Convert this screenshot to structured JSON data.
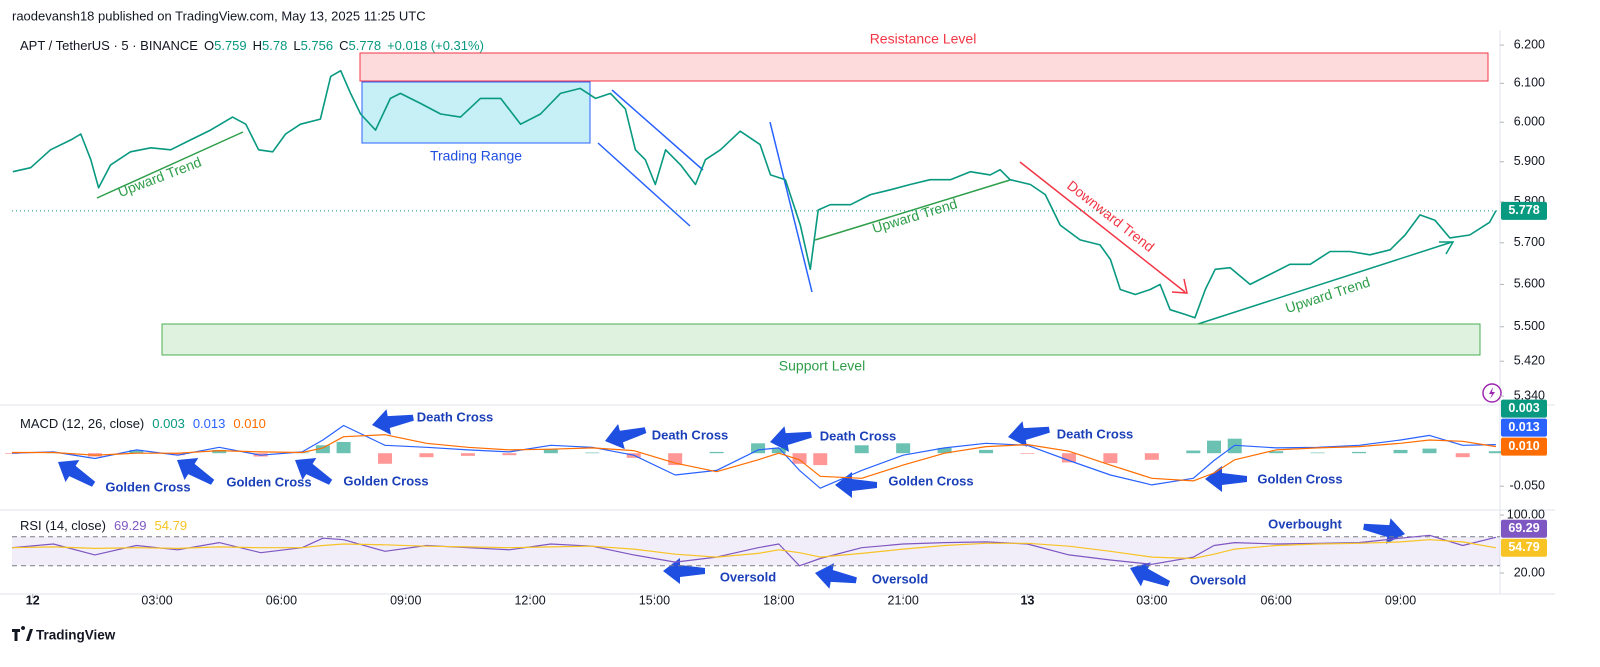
{
  "header": {
    "published": "raodevansh18 published on TradingView.com, May 13, 2025 11:25 UTC",
    "logo": "TradingView"
  },
  "chart_data": [
    {
      "type": "line",
      "symbol": "APT / TetherUS · 5 · BINANCE",
      "legend": [
        {
          "label": "O",
          "value": 5.759
        },
        {
          "label": "H",
          "value": 5.78
        },
        {
          "label": "L",
          "value": 5.756
        },
        {
          "label": "C",
          "value": 5.778
        }
      ],
      "change": "+0.018 (+0.31%)",
      "annotations": [
        "Resistance Level",
        "Trading Range",
        "Upward Trend",
        "Upward Trend",
        "Downward Trend",
        "Upward Trend",
        "Support Level"
      ],
      "log": true,
      "color": "#089981",
      "last_label": "5.778",
      "xlim": [
        -0.5,
        35.4
      ],
      "ylim": [
        5.32,
        6.24
      ],
      "yticks": [
        {
          "value": 6.2,
          "label": "6.200"
        },
        {
          "value": 6.1,
          "label": "6.100"
        },
        {
          "value": 6.0,
          "label": "6.000"
        },
        {
          "value": 5.9,
          "label": "5.900"
        },
        {
          "value": 5.8,
          "label": "5.800"
        },
        {
          "value": 5.7,
          "label": "5.700"
        },
        {
          "value": 5.6,
          "label": "5.600"
        },
        {
          "value": 5.5,
          "label": "5.500"
        },
        {
          "value": 5.42,
          "label": "5.420"
        },
        {
          "value": 5.34,
          "label": "5.340"
        }
      ],
      "x": [
        -0.48,
        -0.05,
        0.43,
        0.92,
        1.16,
        1.4,
        1.59,
        1.88,
        2.36,
        2.85,
        3.33,
        3.81,
        4.29,
        4.82,
        5.14,
        5.45,
        5.79,
        6.1,
        6.46,
        6.94,
        7.19,
        7.43,
        7.67,
        7.91,
        8.27,
        8.63,
        8.87,
        9.36,
        9.84,
        10.32,
        10.8,
        11.29,
        11.77,
        12.25,
        12.73,
        13.21,
        13.58,
        13.94,
        14.3,
        14.54,
        14.78,
        15.02,
        15.27,
        15.63,
        15.99,
        16.23,
        16.59,
        17.07,
        17.55,
        17.8,
        18.16,
        18.52,
        18.76,
        18.95,
        19.24,
        19.73,
        20.21,
        20.69,
        21.17,
        21.65,
        22.14,
        22.62,
        23.1,
        23.34,
        23.58,
        24.07,
        24.43,
        24.79,
        25.27,
        25.75,
        26.0,
        26.24,
        26.6,
        26.96,
        27.2,
        27.44,
        27.8,
        28.04,
        28.29,
        28.53,
        28.89,
        29.37,
        29.85,
        30.33,
        30.82,
        31.3,
        31.78,
        32.26,
        32.75,
        33.11,
        33.47,
        33.83,
        34.19,
        34.67,
        35.15,
        35.3
      ],
      "values": [
        5.875,
        5.885,
        5.93,
        5.955,
        5.97,
        5.905,
        5.835,
        5.892,
        5.925,
        5.935,
        5.93,
        5.955,
        5.98,
        6.013,
        5.995,
        5.93,
        5.925,
        5.97,
        5.995,
        6.008,
        6.118,
        6.133,
        6.074,
        6.021,
        5.98,
        6.061,
        6.074,
        6.048,
        6.021,
        6.013,
        6.061,
        6.061,
        5.995,
        6.021,
        6.074,
        6.087,
        6.061,
        6.074,
        6.034,
        5.93,
        5.905,
        5.843,
        5.93,
        5.892,
        5.843,
        5.905,
        5.93,
        5.977,
        5.943,
        5.867,
        5.855,
        5.743,
        5.636,
        5.78,
        5.793,
        5.793,
        5.818,
        5.83,
        5.843,
        5.855,
        5.855,
        5.875,
        5.867,
        5.88,
        5.855,
        5.843,
        5.818,
        5.743,
        5.707,
        5.695,
        5.66,
        5.588,
        5.576,
        5.588,
        5.6,
        5.54,
        5.529,
        5.521,
        5.588,
        5.636,
        5.64,
        5.6,
        5.624,
        5.648,
        5.648,
        5.679,
        5.679,
        5.671,
        5.683,
        5.719,
        5.768,
        5.755,
        5.712,
        5.719,
        5.75,
        5.778
      ]
    },
    {
      "type": "line",
      "title": "MACD (12, 26, close)",
      "annotations": [
        "Death Cross",
        "Death Cross",
        "Death Cross",
        "Death Cross",
        "Golden Cross",
        "Golden Cross",
        "Golden Cross",
        "Golden Cross",
        "Golden Cross"
      ],
      "xlim": [
        -0.5,
        35.4
      ],
      "ylim": [
        -0.086,
        0.073
      ],
      "yticks": [
        {
          "value": -0.05,
          "label": "-0.050"
        }
      ],
      "x": [
        -0.5,
        0.5,
        1.5,
        2.5,
        3.5,
        4.5,
        5.5,
        6.5,
        7,
        7.5,
        8.5,
        9.5,
        10.5,
        11.5,
        12.5,
        13.5,
        14.5,
        15.5,
        16.5,
        17.5,
        18,
        18.5,
        19,
        20,
        21,
        22,
        23,
        24,
        25,
        26,
        27,
        28,
        28.5,
        29,
        30,
        31,
        32,
        33,
        33.7,
        34.5,
        35.3
      ],
      "series": [
        {
          "type": "histogram",
          "color": "#089981",
          "down_color": "#ff5252",
          "last_label": "0.003",
          "values": [
            -0.001,
            0.001,
            -0.005,
            0.005,
            -0.003,
            0.005,
            -0.005,
            0.001,
            0.012,
            0.017,
            -0.016,
            -0.006,
            -0.004,
            -0.003,
            0.006,
            0.001,
            -0.007,
            -0.018,
            0.002,
            0.015,
            0.008,
            -0.016,
            -0.018,
            0.012,
            0.015,
            0.008,
            0.005,
            -0.001,
            -0.014,
            -0.015,
            -0.01,
            0.004,
            0.019,
            0.022,
            0.003,
            0.001,
            0.002,
            0.005,
            0.007,
            -0.006,
            0.003
          ]
        },
        {
          "type": "line",
          "color": "#2962ff",
          "last_label": "0.013",
          "values": [
            0,
            0.002,
            -0.008,
            0.005,
            -0.003,
            0.009,
            -0.003,
            0.002,
            0.02,
            0.042,
            0.012,
            0.009,
            0.005,
            0.002,
            0.012,
            0.009,
            -0.003,
            -0.033,
            -0.026,
            0.005,
            0.008,
            -0.026,
            -0.053,
            -0.026,
            -0.003,
            0.008,
            0.015,
            0.012,
            -0.011,
            -0.033,
            -0.048,
            -0.038,
            -0.011,
            0.012,
            0.008,
            0.009,
            0.012,
            0.02,
            0.027,
            0.012,
            0.013
          ]
        },
        {
          "type": "line",
          "color": "#ff6d00",
          "last_label": "0.010",
          "values": [
            0.001,
            0.001,
            -0.003,
            0,
            0,
            0.004,
            0.002,
            0.001,
            0.008,
            0.025,
            0.028,
            0.015,
            0.009,
            0.005,
            0.006,
            0.008,
            0.004,
            -0.015,
            -0.028,
            -0.01,
            0,
            -0.01,
            -0.035,
            -0.038,
            -0.018,
            0,
            0.01,
            0.013,
            0.003,
            -0.018,
            -0.038,
            -0.042,
            -0.03,
            -0.01,
            0.005,
            0.008,
            0.01,
            0.015,
            0.02,
            0.018,
            0.01
          ]
        }
      ]
    },
    {
      "type": "line",
      "title": "RSI (14, close)",
      "annotations": [
        "Oversold",
        "Oversold",
        "Oversold",
        "Overbought"
      ],
      "xlim": [
        -0.5,
        35.4
      ],
      "ylim": [
        -9,
        107
      ],
      "bands": [
        70,
        30
      ],
      "band_color": "#7e57c2",
      "yticks": [
        {
          "value": 100,
          "label": "100.00"
        },
        {
          "value": 20,
          "label": "20.00"
        }
      ],
      "xticks": [
        {
          "value": 0,
          "label": "12"
        },
        {
          "value": 3,
          "label": "03:00"
        },
        {
          "value": 6,
          "label": "06:00"
        },
        {
          "value": 9,
          "label": "09:00"
        },
        {
          "value": 12,
          "label": "12:00"
        },
        {
          "value": 15,
          "label": "15:00"
        },
        {
          "value": 18,
          "label": "18:00"
        },
        {
          "value": 21,
          "label": "21:00"
        },
        {
          "value": 24,
          "label": "13"
        },
        {
          "value": 27,
          "label": "03:00"
        },
        {
          "value": 30,
          "label": "06:00"
        },
        {
          "value": 33,
          "label": "09:00"
        }
      ],
      "x": [
        -0.5,
        0.5,
        1.5,
        2.5,
        3.5,
        4.5,
        5.5,
        6.5,
        7,
        7.5,
        8.5,
        9.5,
        10.5,
        11.5,
        12.5,
        13.5,
        14.5,
        15.5,
        16.5,
        17.5,
        18,
        18.5,
        19,
        20,
        21,
        22,
        23,
        24,
        25,
        26,
        27,
        28,
        28.5,
        29,
        30,
        31,
        32,
        33,
        33.7,
        34.5,
        35.3
      ],
      "series": [
        {
          "type": "line",
          "color": "#7e57c2",
          "last_label": "69.29",
          "values": [
            55,
            60,
            45,
            58,
            52,
            62,
            48,
            55,
            68,
            66,
            50,
            58,
            55,
            52,
            60,
            57,
            45,
            35,
            42,
            55,
            60,
            30,
            40,
            55,
            60,
            62,
            63,
            60,
            45,
            38,
            32,
            42,
            58,
            62,
            60,
            61,
            62,
            68,
            72,
            58,
            69.29
          ]
        },
        {
          "type": "line",
          "color": "#f7c325",
          "last_label": "54.79",
          "values": [
            55,
            56,
            54,
            55,
            54,
            56,
            55,
            55,
            58,
            60,
            59,
            57,
            56,
            55,
            56,
            57,
            53,
            46,
            42,
            47,
            52,
            48,
            42,
            47,
            53,
            58,
            61,
            61,
            57,
            50,
            42,
            40,
            46,
            53,
            58,
            60,
            61,
            63,
            66,
            63,
            54.79
          ]
        }
      ]
    }
  ]
}
